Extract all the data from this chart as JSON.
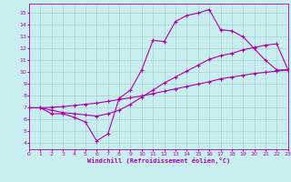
{
  "xlabel": "Windchill (Refroidissement éolien,°C)",
  "xlim": [
    0,
    23
  ],
  "ylim": [
    3.5,
    15.8
  ],
  "xticks": [
    0,
    1,
    2,
    3,
    4,
    5,
    6,
    7,
    8,
    9,
    10,
    11,
    12,
    13,
    14,
    15,
    16,
    17,
    18,
    19,
    20,
    21,
    22,
    23
  ],
  "yticks": [
    4,
    5,
    6,
    7,
    8,
    9,
    10,
    11,
    12,
    13,
    14,
    15
  ],
  "background_color": "#c8eef0",
  "grid_color": "#a0ccc8",
  "line_color": "#aa00aa",
  "curve1_x": [
    0,
    1,
    2,
    3,
    4,
    5,
    6,
    7,
    8,
    9,
    10,
    11,
    12,
    13,
    14,
    15,
    16,
    17,
    18,
    19,
    20,
    21,
    22,
    23
  ],
  "curve1_y": [
    7.0,
    7.0,
    6.5,
    6.5,
    6.2,
    5.8,
    4.2,
    4.8,
    7.8,
    8.5,
    10.2,
    12.7,
    12.6,
    14.3,
    14.8,
    15.0,
    15.3,
    13.6,
    13.5,
    13.0,
    12.0,
    11.0,
    10.2,
    10.2
  ],
  "curve2_x": [
    0,
    1,
    2,
    3,
    4,
    5,
    6,
    7,
    8,
    9,
    10,
    11,
    12,
    13,
    14,
    15,
    16,
    17,
    18,
    19,
    20,
    21,
    22,
    23
  ],
  "curve2_y": [
    7.0,
    7.0,
    7.05,
    7.1,
    7.2,
    7.3,
    7.4,
    7.55,
    7.7,
    7.85,
    8.0,
    8.2,
    8.4,
    8.6,
    8.8,
    9.0,
    9.2,
    9.45,
    9.6,
    9.75,
    9.9,
    10.0,
    10.1,
    10.2
  ],
  "curve3_x": [
    0,
    1,
    2,
    3,
    4,
    5,
    6,
    7,
    8,
    9,
    10,
    11,
    12,
    13,
    14,
    15,
    16,
    17,
    18,
    19,
    20,
    21,
    22,
    23
  ],
  "curve3_y": [
    7.0,
    7.0,
    6.8,
    6.6,
    6.5,
    6.4,
    6.3,
    6.5,
    6.8,
    7.3,
    7.9,
    8.5,
    9.1,
    9.6,
    10.1,
    10.6,
    11.1,
    11.4,
    11.6,
    11.9,
    12.1,
    12.3,
    12.4,
    10.2
  ]
}
